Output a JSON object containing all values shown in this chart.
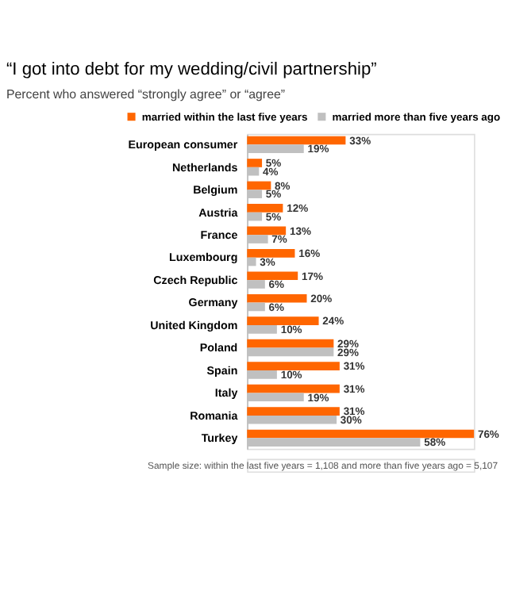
{
  "chart_data": {
    "type": "bar",
    "orientation": "horizontal",
    "title": "“I got into debt for my wedding/civil partnership”",
    "subtitle": "Percent who answered “strongly agree” or “agree”",
    "categories": [
      "European consumer",
      "Netherlands",
      "Belgium",
      "Austria",
      "France",
      "Luxembourg",
      "Czech Republic",
      "Germany",
      "United Kingdom",
      "Poland",
      "Spain",
      "Italy",
      "Romania",
      "Turkey"
    ],
    "series": [
      {
        "name": "married within the last five years",
        "color": "#ff6600",
        "values": [
          33,
          5,
          8,
          12,
          13,
          16,
          17,
          20,
          24,
          29,
          31,
          31,
          31,
          76
        ],
        "value_labels": [
          "33%",
          "5%",
          "8%",
          "12%",
          "13%",
          "16%",
          "17%",
          "20%",
          "24%",
          "29%",
          "31%",
          "31%",
          "31%",
          "76%"
        ]
      },
      {
        "name": "married more than five years ago",
        "color": "#c0c0c0",
        "values": [
          19,
          4,
          5,
          5,
          7,
          3,
          6,
          6,
          10,
          29,
          10,
          19,
          30,
          58
        ],
        "value_labels": [
          "19%",
          "4%",
          "5%",
          "5%",
          "7%",
          "3%",
          "6%",
          "6%",
          "10%",
          "29%",
          "10%",
          "19%",
          "30%",
          "58%"
        ]
      }
    ],
    "xlim": [
      0,
      76
    ],
    "legend": "top",
    "annotations": [
      "Sample size: within the last five years = 1,108  and more than five years  ago  = 5,107"
    ]
  }
}
